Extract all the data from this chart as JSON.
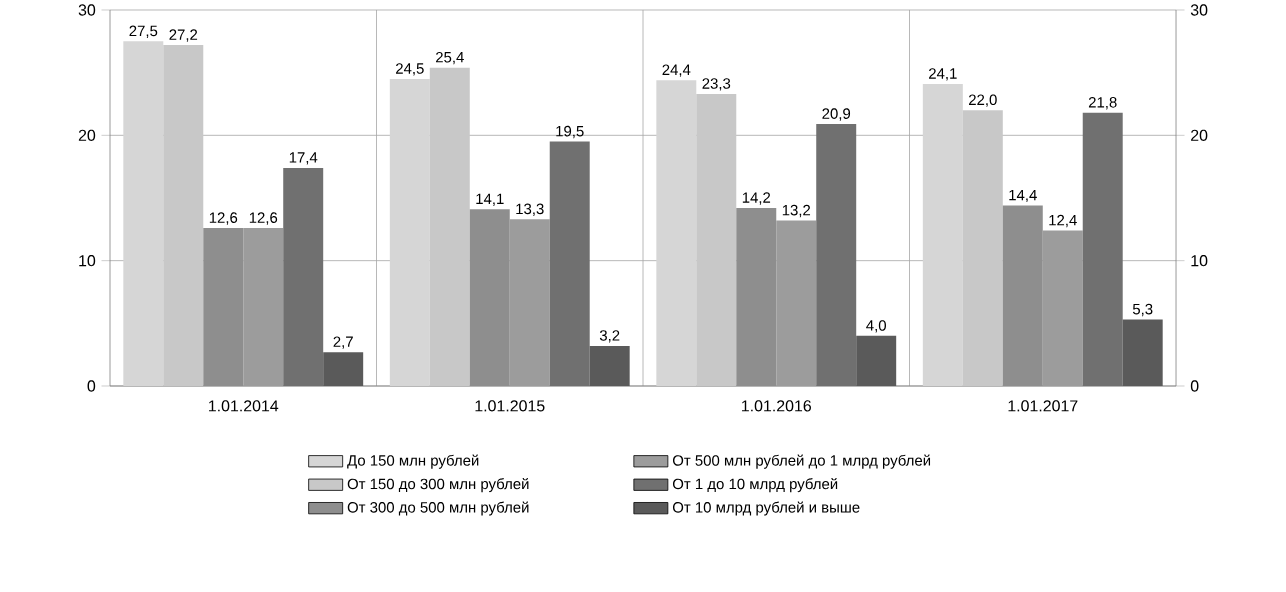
{
  "chart_data": {
    "type": "bar",
    "categories": [
      "1.01.2014",
      "1.01.2015",
      "1.01.2016",
      "1.01.2017"
    ],
    "series": [
      {
        "name": "До 150 млн рублей",
        "color": "#d6d6d6",
        "values": [
          27.5,
          24.5,
          24.4,
          24.1
        ],
        "value_labels": [
          "27,5",
          "24,5",
          "24,4",
          "24,1"
        ]
      },
      {
        "name": "От 150 до 300 млн рублей",
        "color": "#c8c8c8",
        "values": [
          27.2,
          25.4,
          23.3,
          22.0
        ],
        "value_labels": [
          "27,2",
          "25,4",
          "23,3",
          "22,0"
        ]
      },
      {
        "name": "От 300 до 500 млн рублей",
        "color": "#8e8e8e",
        "values": [
          12.6,
          14.1,
          14.2,
          14.4
        ],
        "value_labels": [
          "12,6",
          "14,1",
          "14,2",
          "14,4"
        ]
      },
      {
        "name": "От 500 млн рублей до 1 млрд рублей",
        "color": "#9c9c9c",
        "values": [
          12.6,
          13.3,
          13.2,
          12.4
        ],
        "value_labels": [
          "12,6",
          "13,3",
          "13,2",
          "12,4"
        ]
      },
      {
        "name": "От 1 до 10 млрд рублей",
        "color": "#707070",
        "values": [
          17.4,
          19.5,
          20.9,
          21.8
        ],
        "value_labels": [
          "17,4",
          "19,5",
          "20,9",
          "21,8"
        ]
      },
      {
        "name": "От 10 млрд рублей и выше",
        "color": "#5a5a5a",
        "values": [
          2.7,
          3.2,
          4.0,
          5.3
        ],
        "value_labels": [
          "2,7",
          "3,2",
          "4,0",
          "5,3"
        ]
      }
    ],
    "ylim": [
      0,
      30
    ],
    "yticks": [
      0,
      10,
      20,
      30
    ],
    "y2lim": [
      0,
      30
    ],
    "y2ticks": [
      0,
      10,
      20,
      30
    ],
    "grid": true,
    "legend": "bottom"
  }
}
